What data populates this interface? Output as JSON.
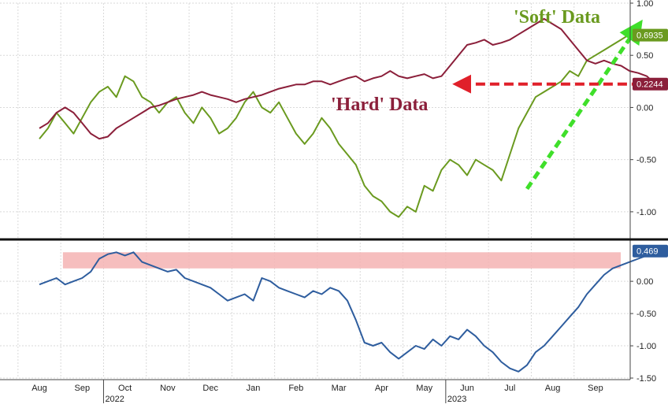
{
  "chart_data": [
    {
      "type": "line",
      "panel": "top",
      "xlabel": "",
      "ylabel": "",
      "ylim": [
        -1.25,
        1.0
      ],
      "yticks": [
        "1.00",
        "0.50",
        "0.00",
        "-0.50",
        "-1.00"
      ],
      "grid": true,
      "x_month_index": "0 = Aug 2022 ... 13 = Sep 2023",
      "series": [
        {
          "key": "soft",
          "color": "#6a9a1f",
          "last_value_label": "0.6935",
          "points": [
            [
              0.0,
              -0.3
            ],
            [
              0.2,
              -0.2
            ],
            [
              0.4,
              -0.05
            ],
            [
              0.6,
              -0.15
            ],
            [
              0.8,
              -0.25
            ],
            [
              1.0,
              -0.1
            ],
            [
              1.2,
              0.05
            ],
            [
              1.4,
              0.15
            ],
            [
              1.6,
              0.2
            ],
            [
              1.8,
              0.1
            ],
            [
              2.0,
              0.3
            ],
            [
              2.2,
              0.25
            ],
            [
              2.4,
              0.1
            ],
            [
              2.6,
              0.05
            ],
            [
              2.8,
              -0.05
            ],
            [
              3.0,
              0.05
            ],
            [
              3.2,
              0.1
            ],
            [
              3.4,
              -0.05
            ],
            [
              3.6,
              -0.15
            ],
            [
              3.8,
              0.0
            ],
            [
              4.0,
              -0.1
            ],
            [
              4.2,
              -0.25
            ],
            [
              4.4,
              -0.2
            ],
            [
              4.6,
              -0.1
            ],
            [
              4.8,
              0.05
            ],
            [
              5.0,
              0.15
            ],
            [
              5.2,
              0.0
            ],
            [
              5.4,
              -0.05
            ],
            [
              5.6,
              0.05
            ],
            [
              5.8,
              -0.1
            ],
            [
              6.0,
              -0.25
            ],
            [
              6.2,
              -0.35
            ],
            [
              6.4,
              -0.25
            ],
            [
              6.6,
              -0.1
            ],
            [
              6.8,
              -0.2
            ],
            [
              7.0,
              -0.35
            ],
            [
              7.2,
              -0.45
            ],
            [
              7.4,
              -0.55
            ],
            [
              7.6,
              -0.75
            ],
            [
              7.8,
              -0.85
            ],
            [
              8.0,
              -0.9
            ],
            [
              8.2,
              -1.0
            ],
            [
              8.4,
              -1.05
            ],
            [
              8.6,
              -0.95
            ],
            [
              8.8,
              -1.0
            ],
            [
              9.0,
              -0.75
            ],
            [
              9.2,
              -0.8
            ],
            [
              9.4,
              -0.6
            ],
            [
              9.6,
              -0.5
            ],
            [
              9.8,
              -0.55
            ],
            [
              10.0,
              -0.65
            ],
            [
              10.2,
              -0.5
            ],
            [
              10.4,
              -0.55
            ],
            [
              10.6,
              -0.6
            ],
            [
              10.8,
              -0.7
            ],
            [
              11.0,
              -0.45
            ],
            [
              11.2,
              -0.2
            ],
            [
              11.4,
              -0.05
            ],
            [
              11.6,
              0.1
            ],
            [
              11.8,
              0.15
            ],
            [
              12.0,
              0.2
            ],
            [
              12.2,
              0.25
            ],
            [
              12.4,
              0.35
            ],
            [
              12.6,
              0.3
            ],
            [
              12.8,
              0.45
            ],
            [
              13.0,
              0.5
            ],
            [
              13.2,
              0.55
            ],
            [
              13.4,
              0.6
            ],
            [
              13.6,
              0.65
            ],
            [
              13.8,
              0.7
            ],
            [
              14.0,
              0.65
            ],
            [
              14.2,
              0.7
            ],
            [
              14.4,
              0.6935
            ]
          ]
        },
        {
          "key": "hard",
          "color": "#8b1f3a",
          "last_value_label": "0.2244",
          "points": [
            [
              0.0,
              -0.2
            ],
            [
              0.2,
              -0.15
            ],
            [
              0.4,
              -0.05
            ],
            [
              0.6,
              0.0
            ],
            [
              0.8,
              -0.05
            ],
            [
              1.0,
              -0.15
            ],
            [
              1.2,
              -0.25
            ],
            [
              1.4,
              -0.3
            ],
            [
              1.6,
              -0.28
            ],
            [
              1.8,
              -0.2
            ],
            [
              2.0,
              -0.15
            ],
            [
              2.2,
              -0.1
            ],
            [
              2.4,
              -0.05
            ],
            [
              2.6,
              0.0
            ],
            [
              2.8,
              0.02
            ],
            [
              3.0,
              0.05
            ],
            [
              3.2,
              0.08
            ],
            [
              3.4,
              0.1
            ],
            [
              3.6,
              0.12
            ],
            [
              3.8,
              0.15
            ],
            [
              4.0,
              0.12
            ],
            [
              4.2,
              0.1
            ],
            [
              4.4,
              0.08
            ],
            [
              4.6,
              0.05
            ],
            [
              4.8,
              0.08
            ],
            [
              5.0,
              0.1
            ],
            [
              5.2,
              0.12
            ],
            [
              5.4,
              0.15
            ],
            [
              5.6,
              0.18
            ],
            [
              5.8,
              0.2
            ],
            [
              6.0,
              0.22
            ],
            [
              6.2,
              0.22
            ],
            [
              6.4,
              0.25
            ],
            [
              6.6,
              0.25
            ],
            [
              6.8,
              0.22
            ],
            [
              7.0,
              0.25
            ],
            [
              7.2,
              0.28
            ],
            [
              7.4,
              0.3
            ],
            [
              7.6,
              0.25
            ],
            [
              7.8,
              0.28
            ],
            [
              8.0,
              0.3
            ],
            [
              8.2,
              0.35
            ],
            [
              8.4,
              0.3
            ],
            [
              8.6,
              0.28
            ],
            [
              8.8,
              0.3
            ],
            [
              9.0,
              0.32
            ],
            [
              9.2,
              0.28
            ],
            [
              9.4,
              0.3
            ],
            [
              9.6,
              0.4
            ],
            [
              9.8,
              0.5
            ],
            [
              10.0,
              0.6
            ],
            [
              10.2,
              0.62
            ],
            [
              10.4,
              0.65
            ],
            [
              10.6,
              0.6
            ],
            [
              10.8,
              0.62
            ],
            [
              11.0,
              0.65
            ],
            [
              11.2,
              0.7
            ],
            [
              11.4,
              0.75
            ],
            [
              11.6,
              0.8
            ],
            [
              11.8,
              0.85
            ],
            [
              12.0,
              0.8
            ],
            [
              12.2,
              0.75
            ],
            [
              12.4,
              0.65
            ],
            [
              12.6,
              0.55
            ],
            [
              12.8,
              0.45
            ],
            [
              13.0,
              0.42
            ],
            [
              13.2,
              0.45
            ],
            [
              13.4,
              0.42
            ],
            [
              13.6,
              0.4
            ],
            [
              13.8,
              0.35
            ],
            [
              14.0,
              0.33
            ],
            [
              14.2,
              0.3
            ],
            [
              14.4,
              0.2244
            ]
          ]
        }
      ],
      "annotations": {
        "soft_label": "'Soft' Data",
        "hard_label": "'Hard' Data",
        "soft_color": "#3fdf2a",
        "hard_color": "#e0202a",
        "soft_arrow_from": [
          11.4,
          -0.78
        ],
        "soft_arrow_to": [
          14.0,
          0.78
        ],
        "hard_arrow_from": [
          14.4,
          0.2244
        ],
        "hard_arrow_to": [
          9.8,
          0.2244
        ]
      }
    },
    {
      "type": "line",
      "panel": "bottom",
      "xlabel": "",
      "ylabel": "",
      "ylim": [
        -1.5,
        0.6
      ],
      "yticks": [
        "0.00",
        "-0.50",
        "-1.00",
        "-1.50"
      ],
      "grid": true,
      "highlight_band": {
        "from": 0.2,
        "to": 0.45,
        "color": "#f5b3b3"
      },
      "series": [
        {
          "key": "spread",
          "color": "#2e5d9e",
          "last_value_label": "0.469",
          "points": [
            [
              0.0,
              -0.05
            ],
            [
              0.2,
              0.0
            ],
            [
              0.4,
              0.05
            ],
            [
              0.6,
              -0.05
            ],
            [
              0.8,
              0.0
            ],
            [
              1.0,
              0.05
            ],
            [
              1.2,
              0.15
            ],
            [
              1.4,
              0.35
            ],
            [
              1.6,
              0.42
            ],
            [
              1.8,
              0.45
            ],
            [
              2.0,
              0.4
            ],
            [
              2.2,
              0.45
            ],
            [
              2.4,
              0.3
            ],
            [
              2.6,
              0.25
            ],
            [
              2.8,
              0.2
            ],
            [
              3.0,
              0.15
            ],
            [
              3.2,
              0.18
            ],
            [
              3.4,
              0.05
            ],
            [
              3.6,
              0.0
            ],
            [
              3.8,
              -0.05
            ],
            [
              4.0,
              -0.1
            ],
            [
              4.2,
              -0.2
            ],
            [
              4.4,
              -0.3
            ],
            [
              4.6,
              -0.25
            ],
            [
              4.8,
              -0.2
            ],
            [
              5.0,
              -0.3
            ],
            [
              5.2,
              0.05
            ],
            [
              5.4,
              0.0
            ],
            [
              5.6,
              -0.1
            ],
            [
              5.8,
              -0.15
            ],
            [
              6.0,
              -0.2
            ],
            [
              6.2,
              -0.25
            ],
            [
              6.4,
              -0.15
            ],
            [
              6.6,
              -0.2
            ],
            [
              6.8,
              -0.1
            ],
            [
              7.0,
              -0.15
            ],
            [
              7.2,
              -0.3
            ],
            [
              7.4,
              -0.6
            ],
            [
              7.6,
              -0.95
            ],
            [
              7.8,
              -1.0
            ],
            [
              8.0,
              -0.95
            ],
            [
              8.2,
              -1.1
            ],
            [
              8.4,
              -1.2
            ],
            [
              8.6,
              -1.1
            ],
            [
              8.8,
              -1.0
            ],
            [
              9.0,
              -1.05
            ],
            [
              9.2,
              -0.9
            ],
            [
              9.4,
              -1.0
            ],
            [
              9.6,
              -0.85
            ],
            [
              9.8,
              -0.9
            ],
            [
              10.0,
              -0.75
            ],
            [
              10.2,
              -0.85
            ],
            [
              10.4,
              -1.0
            ],
            [
              10.6,
              -1.1
            ],
            [
              10.8,
              -1.25
            ],
            [
              11.0,
              -1.35
            ],
            [
              11.2,
              -1.4
            ],
            [
              11.4,
              -1.3
            ],
            [
              11.6,
              -1.1
            ],
            [
              11.8,
              -1.0
            ],
            [
              12.0,
              -0.85
            ],
            [
              12.2,
              -0.7
            ],
            [
              12.4,
              -0.55
            ],
            [
              12.6,
              -0.4
            ],
            [
              12.8,
              -0.2
            ],
            [
              13.0,
              -0.05
            ],
            [
              13.2,
              0.1
            ],
            [
              13.4,
              0.2
            ],
            [
              13.6,
              0.25
            ],
            [
              13.8,
              0.3
            ],
            [
              14.0,
              0.35
            ],
            [
              14.2,
              0.4
            ],
            [
              14.4,
              0.469
            ]
          ]
        }
      ]
    }
  ],
  "x_axis": {
    "months": [
      "Aug",
      "Sep",
      "Oct",
      "Nov",
      "Dec",
      "Jan",
      "Feb",
      "Mar",
      "Apr",
      "May",
      "Jun",
      "Jul",
      "Aug",
      "Sep"
    ],
    "year_labels": [
      {
        "label": "2022",
        "month_index": 2
      },
      {
        "label": "2023",
        "month_index": 10
      }
    ]
  }
}
